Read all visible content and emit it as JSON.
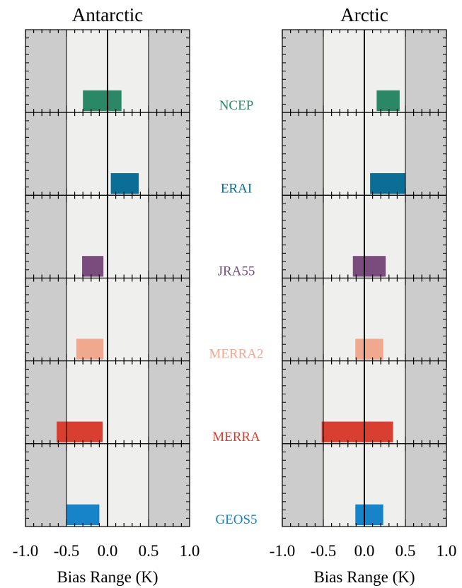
{
  "chart_data": {
    "type": "bar",
    "orientation": "horizontal-range",
    "xlim": [
      -1.0,
      1.0
    ],
    "x_ticks": [
      "-1.0",
      "-0.5",
      "0.0",
      "0.5",
      "1.0"
    ],
    "xlabel": "Bias Range (K)",
    "shaded_outside": [
      -0.5,
      0.5
    ],
    "zero_line": 0.0,
    "panels": [
      {
        "title": "Antarctic"
      },
      {
        "title": "Arctic"
      }
    ],
    "series": [
      {
        "name": "NCEP",
        "color": "#2a8866",
        "antarctic": [
          -0.3,
          0.17
        ],
        "arctic": [
          0.15,
          0.43
        ]
      },
      {
        "name": "ERAI",
        "color": "#0a6e96",
        "antarctic": [
          0.04,
          0.38
        ],
        "arctic": [
          0.07,
          0.5
        ]
      },
      {
        "name": "JRA55",
        "color": "#7a4b7d",
        "antarctic": [
          -0.31,
          -0.05
        ],
        "arctic": [
          -0.14,
          0.26
        ]
      },
      {
        "name": "MERRA2",
        "color": "#f0a88e",
        "antarctic": [
          -0.38,
          -0.05
        ],
        "arctic": [
          -0.11,
          0.23
        ]
      },
      {
        "name": "MERRA",
        "color": "#d83f31",
        "antarctic": [
          -0.62,
          -0.06
        ],
        "arctic": [
          -0.52,
          0.35
        ]
      },
      {
        "name": "GEOS5",
        "color": "#1783c9",
        "antarctic": [
          -0.5,
          -0.1
        ],
        "arctic": [
          -0.11,
          0.23
        ]
      }
    ]
  }
}
